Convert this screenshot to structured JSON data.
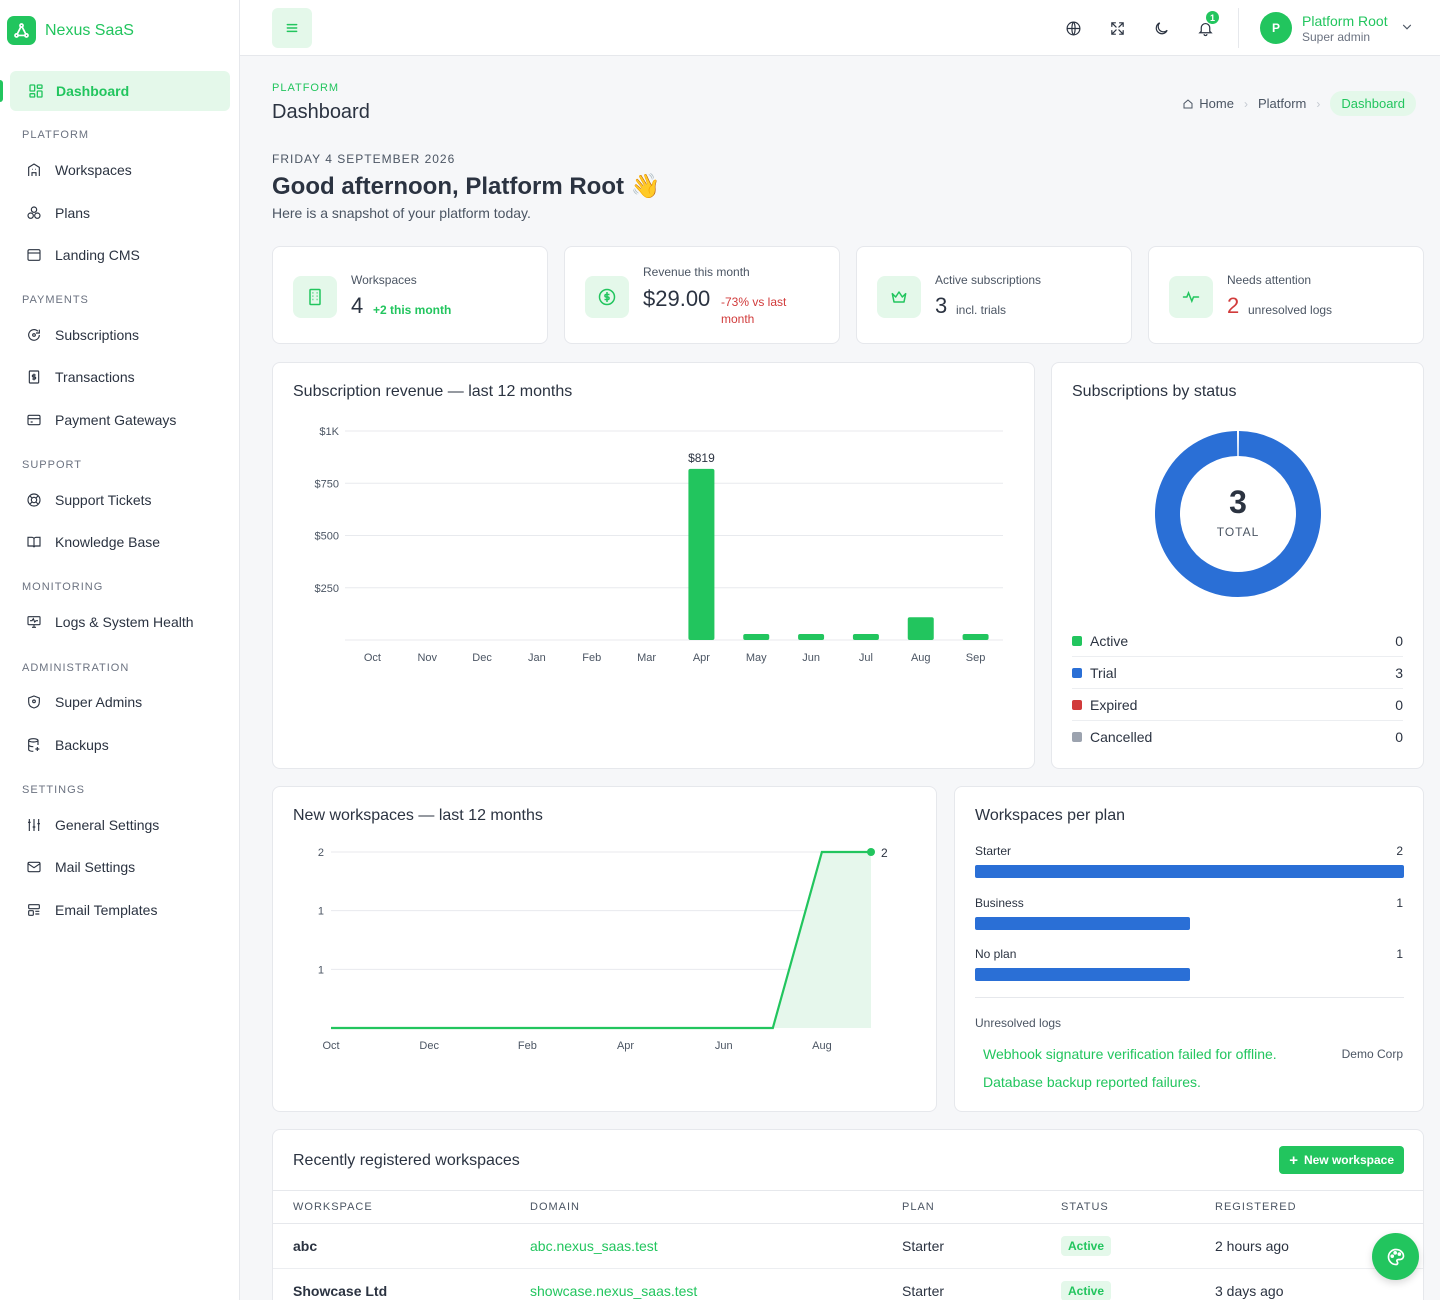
{
  "brand": {
    "name": "Nexus SaaS"
  },
  "sidebar": {
    "active": {
      "label": "Dashboard",
      "icon": "dashboard-icon"
    },
    "sections": [
      {
        "title": "PLATFORM",
        "items": [
          {
            "label": "Workspaces",
            "icon": "building-icon"
          },
          {
            "label": "Plans",
            "icon": "boxes-icon"
          },
          {
            "label": "Landing CMS",
            "icon": "browser-icon"
          }
        ]
      },
      {
        "title": "PAYMENTS",
        "items": [
          {
            "label": "Subscriptions",
            "icon": "refresh-icon"
          },
          {
            "label": "Transactions",
            "icon": "receipt-icon"
          },
          {
            "label": "Payment Gateways",
            "icon": "credit-card-icon"
          }
        ]
      },
      {
        "title": "SUPPORT",
        "items": [
          {
            "label": "Support Tickets",
            "icon": "lifebuoy-icon"
          },
          {
            "label": "Knowledge Base",
            "icon": "book-icon"
          }
        ]
      },
      {
        "title": "MONITORING",
        "items": [
          {
            "label": "Logs & System Health",
            "icon": "monitor-icon"
          }
        ]
      },
      {
        "title": "ADMINISTRATION",
        "items": [
          {
            "label": "Super Admins",
            "icon": "shield-icon"
          },
          {
            "label": "Backups",
            "icon": "database-icon"
          }
        ]
      },
      {
        "title": "SETTINGS",
        "items": [
          {
            "label": "General Settings",
            "icon": "sliders-icon"
          },
          {
            "label": "Mail Settings",
            "icon": "mail-icon"
          },
          {
            "label": "Email Templates",
            "icon": "template-icon"
          }
        ]
      }
    ]
  },
  "topbar": {
    "icons": [
      "menu-icon",
      "globe-icon",
      "fullscreen-icon",
      "moon-icon",
      "bell-icon"
    ],
    "notification_count": "1",
    "user": {
      "initial": "P",
      "name": "Platform Root",
      "role": "Super admin"
    }
  },
  "header": {
    "eyebrow": "PLATFORM",
    "title": "Dashboard",
    "breadcrumbs": [
      "Home",
      "Platform",
      "Dashboard"
    ],
    "date": "FRIDAY 4 SEPTEMBER 2026",
    "greeting": "Good afternoon, Platform Root 👋",
    "subline": "Here is a snapshot of your platform today."
  },
  "stats": [
    {
      "label": "Workspaces",
      "value": "4",
      "note": "+2 this month",
      "note_color": "#22c55e",
      "icon": "building-icon"
    },
    {
      "label": "Revenue this month",
      "value": "$29.00",
      "note_line1": "-73% vs last",
      "note_line2": "month",
      "note_color": "#d13b3b",
      "icon": "dollar-icon"
    },
    {
      "label": "Active subscriptions",
      "value": "3",
      "note": "incl. trials",
      "note_color": "#4b5563",
      "icon": "crown-icon"
    },
    {
      "label": "Needs attention",
      "value": "2",
      "value_color": "#d13b3b",
      "note": "unresolved logs",
      "note_color": "#4b5563",
      "icon": "activity-icon"
    }
  ],
  "revenue_card": {
    "title": "Subscription revenue — last 12 months"
  },
  "status_card": {
    "title": "Subscriptions by status",
    "total": "3",
    "total_label": "TOTAL",
    "rows": [
      {
        "label": "Active",
        "value": "0",
        "color": "#22c55e"
      },
      {
        "label": "Trial",
        "value": "3",
        "color": "#2a6fd6"
      },
      {
        "label": "Expired",
        "value": "0",
        "color": "#d13b3b"
      },
      {
        "label": "Cancelled",
        "value": "0",
        "color": "#9ca3af"
      }
    ]
  },
  "workspaces_card": {
    "title": "New workspaces — last 12 months"
  },
  "plan_card": {
    "title": "Workspaces per plan",
    "logs_title": "Unresolved logs",
    "logs": [
      {
        "text": "Webhook signature verification failed for offline.",
        "org": "Demo Corp"
      },
      {
        "text": "Database backup reported failures.",
        "org": ""
      }
    ]
  },
  "recent": {
    "title": "Recently registered workspaces",
    "new_button": "New workspace",
    "columns": [
      "WORKSPACE",
      "DOMAIN",
      "PLAN",
      "STATUS",
      "REGISTERED"
    ],
    "rows": [
      {
        "workspace": "abc",
        "domain": "abc.nexus_saas.test",
        "plan": "Starter",
        "status": "Active",
        "registered": "2 hours ago"
      },
      {
        "workspace": "Showcase Ltd",
        "domain": "showcase.nexus_saas.test",
        "plan": "Starter",
        "status": "Active",
        "registered": "3 days ago"
      }
    ]
  },
  "chart_data": [
    {
      "type": "bar",
      "title": "Subscription revenue — last 12 months",
      "categories": [
        "Oct",
        "Nov",
        "Dec",
        "Jan",
        "Feb",
        "Mar",
        "Apr",
        "May",
        "Jun",
        "Jul",
        "Aug",
        "Sep"
      ],
      "values": [
        0,
        0,
        0,
        0,
        0,
        0,
        819,
        29,
        29,
        29,
        109,
        29
      ],
      "data_labels": {
        "Apr": "$819"
      },
      "y_ticks": [
        "$250",
        "$500",
        "$750",
        "$1K"
      ],
      "ylim": [
        0,
        1000
      ],
      "color": "#22c55e",
      "grid": true
    },
    {
      "type": "pie",
      "title": "Subscriptions by status",
      "labels": [
        "Active",
        "Trial",
        "Expired",
        "Cancelled"
      ],
      "values": [
        0,
        3,
        0,
        0
      ],
      "colors": [
        "#22c55e",
        "#2a6fd6",
        "#d13b3b",
        "#9ca3af"
      ]
    },
    {
      "type": "area",
      "title": "New workspaces — last 12 months",
      "x": [
        "Oct",
        "Nov",
        "Dec",
        "Jan",
        "Feb",
        "Mar",
        "Apr",
        "May",
        "Jun",
        "Jul",
        "Aug",
        "Sep"
      ],
      "values": [
        0,
        0,
        0,
        0,
        0,
        0,
        0,
        0,
        0,
        0,
        2,
        2
      ],
      "x_tick_labels": [
        "Oct",
        "Dec",
        "Feb",
        "Apr",
        "Jun",
        "Aug"
      ],
      "y_tick_labels": [
        "1",
        "1",
        "2"
      ],
      "end_label": "2",
      "ylim": [
        0,
        2
      ],
      "color": "#22c55e",
      "grid": true
    },
    {
      "type": "bar",
      "title": "Workspaces per plan",
      "categories": [
        "Starter",
        "Business",
        "No plan"
      ],
      "values": [
        2,
        1,
        1
      ],
      "color": "#2a6fd6"
    }
  ]
}
